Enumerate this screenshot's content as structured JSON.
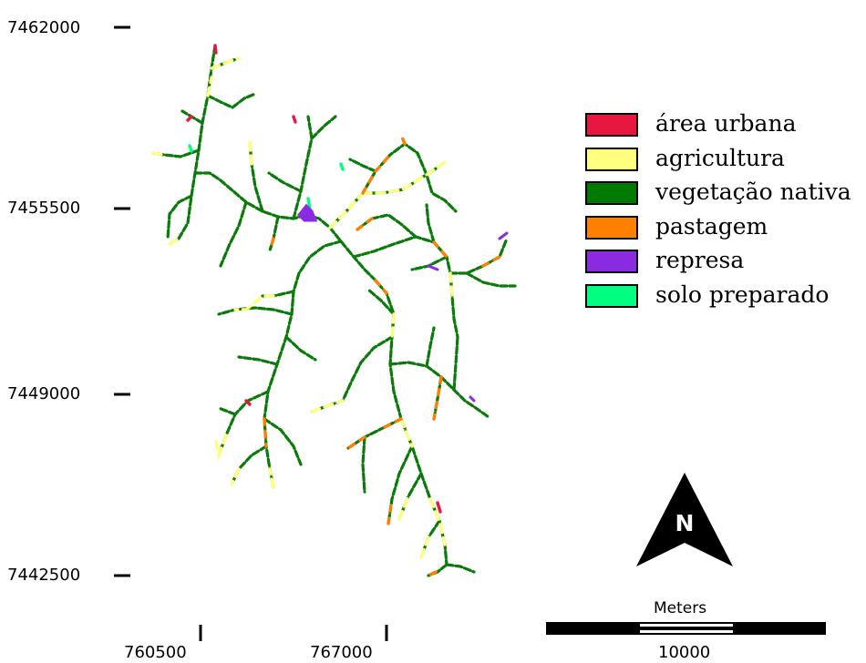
{
  "map": {
    "y_ticks": [
      "7462000",
      "7455500",
      "7449000",
      "7442500"
    ],
    "x_ticks": [
      "760500",
      "767000"
    ],
    "legend": [
      {
        "label": "área urbana",
        "color": "#e8173f"
      },
      {
        "label": "agricultura",
        "color": "#ffff80"
      },
      {
        "label": "vegetação nativa",
        "color": "#007a00"
      },
      {
        "label": "pastagem",
        "color": "#ff8000"
      },
      {
        "label": "represa",
        "color": "#8a2be2"
      },
      {
        "label": "solo preparado",
        "color": "#00ff80"
      }
    ],
    "north_arrow_letter": "N",
    "scale_bar": {
      "title": "Meters",
      "value": "10000"
    }
  }
}
